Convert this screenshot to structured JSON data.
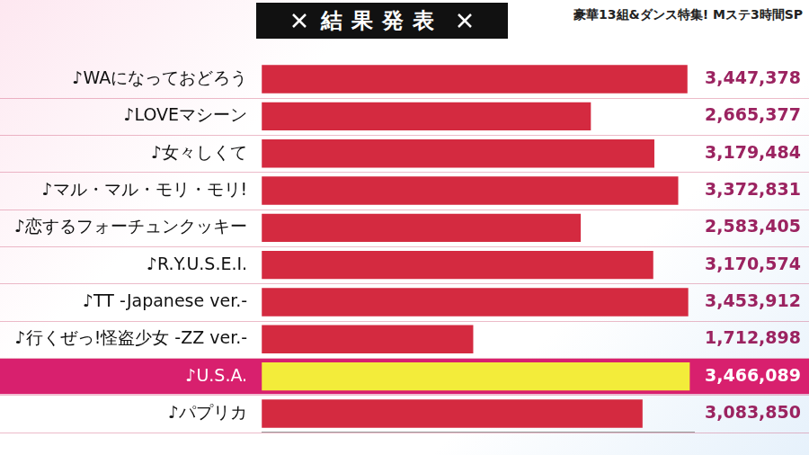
{
  "chart_data": {
    "type": "bar",
    "title": "結果発表",
    "subtitle": "豪華13組&ダンス特集! Mステ3時間SP",
    "orientation": "horizontal",
    "categories": [
      "♪WAになっておどろう",
      "♪LOVEマシーン",
      "♪女々しくて",
      "♪マル・マル・モリ・モリ!",
      "♪恋するフォーチュンクッキー",
      "♪R.Y.U.S.E.I.",
      "♪TT -Japanese ver.-",
      "♪行くぜっ!怪盗少女 -ZZ ver.-",
      "♪U.S.A.",
      "♪パプリカ"
    ],
    "values": [
      3447378,
      2665377,
      3179484,
      3372831,
      2583405,
      3170574,
      3453912,
      1712898,
      3466089,
      3083850
    ],
    "value_labels": [
      "3,447,378",
      "2,665,377",
      "3,179,484",
      "3,372,831",
      "2,583,405",
      "3,170,574",
      "3,453,912",
      "1,712,898",
      "3,466,089",
      "3,083,850"
    ],
    "data_labels": true,
    "colors": [
      "#d42a40",
      "#d42a40",
      "#d42a40",
      "#d42a40",
      "#d42a40",
      "#d42a40",
      "#d42a40",
      "#d42a40",
      "#f3ec3a",
      "#d42a40"
    ],
    "xlim": [
      0,
      3500000
    ],
    "tick_labels": "y",
    "grid": false
  }
}
